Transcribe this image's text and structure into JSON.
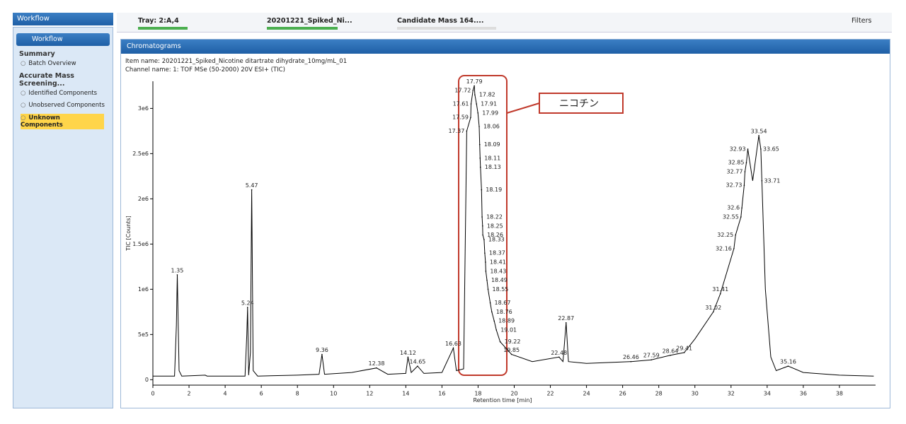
{
  "sidebar": {
    "title": "Workflow",
    "panel_title": "Workflow",
    "sections": [
      {
        "heading": "Summary",
        "items": [
          "Batch Overview"
        ]
      },
      {
        "heading": "Accurate Mass Screening...",
        "items": [
          "Identified Components",
          "Unobserved Components",
          "Unknown Components"
        ]
      }
    ]
  },
  "toolbar": {
    "tray": "Tray: 2:A,4",
    "sample": "20201221_Spiked_Ni...",
    "candidate": "Candidate Mass 164....",
    "filters": "Filters"
  },
  "panel": {
    "title": "Chromatograms",
    "item_name": "Item name: 20201221_Spiked_Nicotine ditartrate dihydrate_10mg/mL_01",
    "channel_name": "Channel name: 1: TOF MSe (50-2000) 20V ESI+ (TIC)"
  },
  "chart_data": {
    "type": "line",
    "x_label": "Retention time [min]",
    "y_label": "TIC [Counts]",
    "color": "#000000",
    "annotation": "ニコチン",
    "xlim": [
      0,
      40
    ],
    "ylim": [
      -60000,
      3300000
    ],
    "xticks": [
      0,
      2,
      4,
      6,
      8,
      10,
      12,
      14,
      16,
      18,
      20,
      22,
      24,
      26,
      28,
      30,
      32,
      34,
      36,
      38
    ],
    "yticks": [
      0,
      {
        "value": 500000,
        "label": "5e5"
      },
      {
        "value": 1000000,
        "label": "1e6"
      },
      {
        "value": 1500000,
        "label": "1.5e6"
      },
      {
        "value": 2000000,
        "label": "2e6"
      },
      {
        "value": 2500000,
        "label": "2.5e6"
      },
      {
        "value": 3000000,
        "label": "3e6"
      }
    ],
    "x": [
      0,
      1.2,
      1.3,
      1.35,
      1.45,
      1.6,
      2.9,
      3,
      5.1,
      5.2,
      5.24,
      5.3,
      5.4,
      5.47,
      5.55,
      5.8,
      8,
      9.2,
      9.36,
      9.5,
      11,
      12.38,
      13,
      14,
      14.12,
      14.3,
      14.65,
      15,
      16,
      16.63,
      16.8,
      17.2,
      17.37,
      17.59,
      17.61,
      17.72,
      17.79,
      17.82,
      17.91,
      17.99,
      18.06,
      18.09,
      18.11,
      18.13,
      18.19,
      18.22,
      18.25,
      18.26,
      18.33,
      18.37,
      18.41,
      18.43,
      18.49,
      18.55,
      18.67,
      18.76,
      18.89,
      19.01,
      19.22,
      19.85,
      21,
      22.48,
      22.7,
      22.87,
      23,
      24,
      26.46,
      27.59,
      28.64,
      29.41,
      30,
      31.02,
      31.41,
      32.16,
      32.25,
      32.55,
      32.6,
      32.73,
      32.77,
      32.85,
      32.93,
      33.2,
      33.54,
      33.65,
      33.71,
      33.9,
      34.2,
      34.5,
      35.16,
      36,
      38,
      39.9
    ],
    "values": [
      40000,
      40000,
      600000,
      1160000,
      100000,
      40000,
      50000,
      40000,
      40000,
      500000,
      800000,
      50000,
      300000,
      2100000,
      100000,
      40000,
      50000,
      60000,
      280000,
      60000,
      80000,
      130000,
      60000,
      70000,
      250000,
      80000,
      150000,
      70000,
      80000,
      350000,
      100000,
      120000,
      2750000,
      2900000,
      3050000,
      3200000,
      3250000,
      3150000,
      3050000,
      2950000,
      2800000,
      2600000,
      2450000,
      2350000,
      2100000,
      1800000,
      1700000,
      1600000,
      1550000,
      1400000,
      1300000,
      1200000,
      1100000,
      1000000,
      850000,
      750000,
      650000,
      550000,
      420000,
      280000,
      200000,
      250000,
      200000,
      630000,
      200000,
      180000,
      200000,
      220000,
      270000,
      300000,
      450000,
      750000,
      950000,
      1450000,
      1600000,
      1800000,
      1900000,
      2150000,
      2300000,
      2400000,
      2550000,
      2200000,
      2700000,
      2550000,
      2200000,
      1000000,
      250000,
      100000,
      150000,
      80000,
      50000,
      40000
    ],
    "peaks": {
      "x": [
        1.35,
        5.24,
        5.47,
        9.36,
        12.38,
        14.12,
        14.65,
        16.63,
        17.37,
        17.59,
        17.61,
        17.72,
        17.79,
        17.82,
        17.91,
        17.99,
        18.06,
        18.09,
        18.11,
        18.13,
        18.19,
        18.22,
        18.25,
        18.26,
        18.33,
        18.37,
        18.41,
        18.43,
        18.49,
        18.55,
        18.67,
        18.76,
        18.89,
        19.01,
        19.22,
        19.85,
        22.48,
        22.87,
        26.46,
        27.59,
        28.64,
        29.41,
        31.02,
        31.41,
        32.16,
        32.25,
        32.55,
        32.6,
        32.73,
        32.77,
        32.85,
        32.93,
        33.54,
        33.65,
        33.71,
        35.16
      ],
      "values": [
        1160000,
        800000,
        2100000,
        280000,
        130000,
        250000,
        150000,
        350000,
        2750000,
        2900000,
        3050000,
        3200000,
        3250000,
        3150000,
        3050000,
        2950000,
        2800000,
        2600000,
        2450000,
        2350000,
        2100000,
        1800000,
        1700000,
        1600000,
        1550000,
        1400000,
        1300000,
        1200000,
        1100000,
        1000000,
        850000,
        750000,
        650000,
        550000,
        420000,
        280000,
        250000,
        630000,
        200000,
        220000,
        270000,
        300000,
        750000,
        950000,
        1450000,
        1600000,
        1800000,
        1900000,
        2150000,
        2300000,
        2400000,
        2550000,
        2700000,
        2550000,
        2200000,
        150000
      ]
    }
  }
}
